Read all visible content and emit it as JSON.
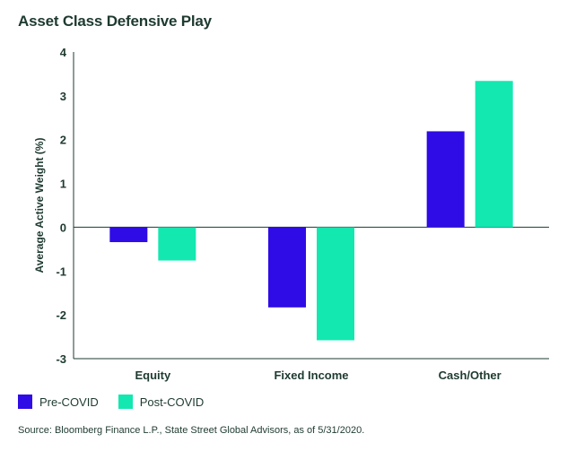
{
  "colors": {
    "pre": "#2f0be6",
    "post": "#12e8b0",
    "axis": "#1e3a2f"
  },
  "chart_data": {
    "type": "bar",
    "title": "Asset Class Defensive Play",
    "xlabel": "",
    "ylabel": "Average Active Weight (%)",
    "categories": [
      "Equity",
      "Fixed Income",
      "Cash/Other"
    ],
    "series": [
      {
        "name": "Pre-COVID",
        "values": [
          -0.34,
          -1.83,
          2.19
        ]
      },
      {
        "name": "Post-COVID",
        "values": [
          -0.76,
          -2.58,
          3.34
        ]
      }
    ],
    "ylim": [
      -3,
      4
    ],
    "yticks": [
      4,
      3,
      2,
      1,
      0,
      -1,
      -2,
      -3
    ],
    "grid": false,
    "legend": "bottom-left"
  },
  "source": "Source: Bloomberg Finance L.P., State Street Global Advisors, as of 5/31/2020."
}
